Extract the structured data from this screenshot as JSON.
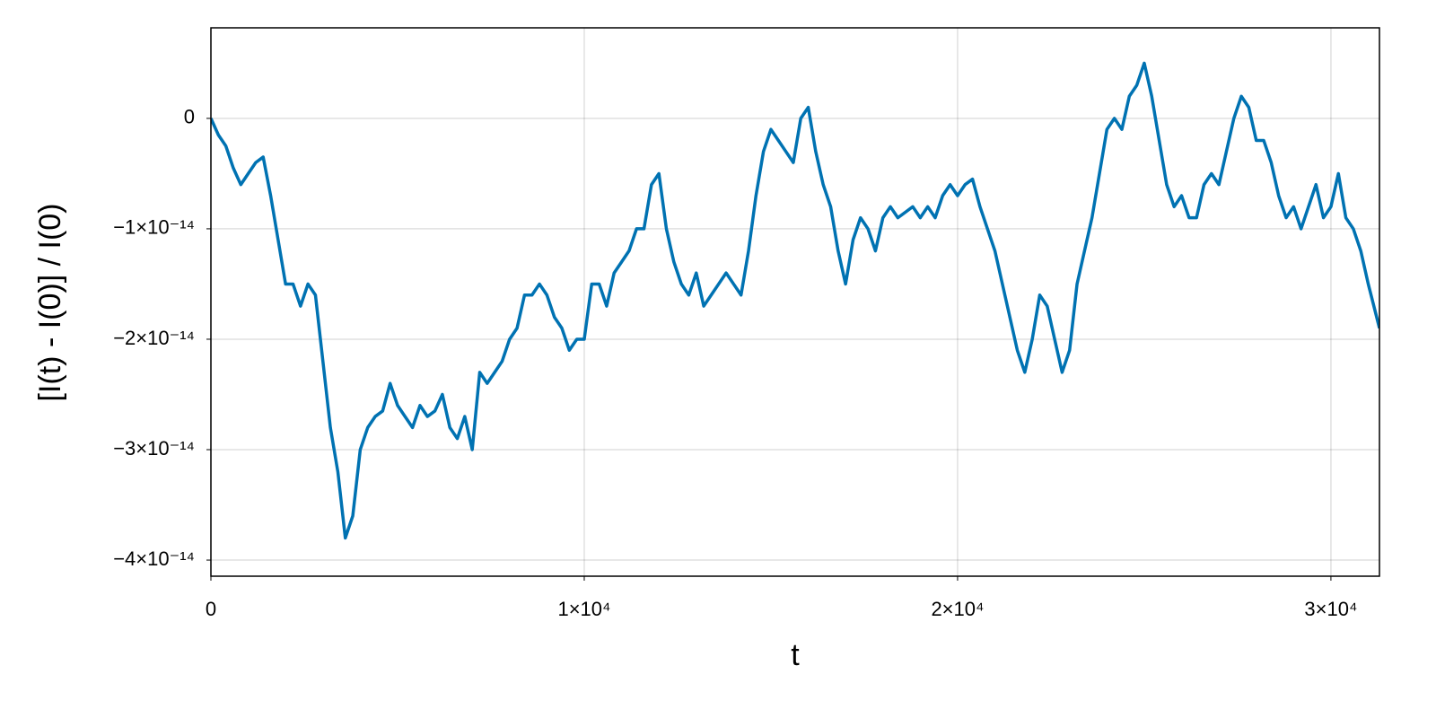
{
  "chart_data": {
    "type": "line",
    "xlabel": "t",
    "ylabel": "[I(t) - I(0)] / I(0)",
    "color": "#0072b2",
    "grid": true,
    "xlim": [
      0,
      31300
    ],
    "ylim": [
      -4.146e-14,
      8.2e-15
    ],
    "xticks": [
      0,
      {
        "value": 10000,
        "label": "1×10⁴"
      },
      {
        "value": 20000,
        "label": "2×10⁴"
      },
      {
        "value": 30000,
        "label": "3×10⁴"
      }
    ],
    "yticks": [
      {
        "value": -4e-14,
        "label": "−4×10⁻¹⁴"
      },
      {
        "value": -3e-14,
        "label": "−3×10⁻¹⁴"
      },
      {
        "value": -2e-14,
        "label": "−2×10⁻¹⁴"
      },
      {
        "value": -1e-14,
        "label": "−1×10⁻¹⁴"
      },
      0
    ],
    "x": [
      0,
      200,
      400,
      600,
      800,
      1000,
      1200,
      1400,
      1600,
      1800,
      2000,
      2200,
      2400,
      2600,
      2800,
      3000,
      3200,
      3400,
      3600,
      3800,
      4000,
      4200,
      4400,
      4600,
      4800,
      5000,
      5200,
      5400,
      5600,
      5800,
      6000,
      6200,
      6400,
      6600,
      6800,
      7000,
      7200,
      7400,
      7600,
      7800,
      8000,
      8200,
      8400,
      8600,
      8800,
      9000,
      9200,
      9400,
      9600,
      9800,
      10000,
      10200,
      10400,
      10600,
      10800,
      11000,
      11200,
      11400,
      11600,
      11800,
      12000,
      12200,
      12400,
      12600,
      12800,
      13000,
      13200,
      13400,
      13600,
      13800,
      14000,
      14200,
      14400,
      14600,
      14800,
      15000,
      15200,
      15400,
      15600,
      15800,
      16000,
      16200,
      16400,
      16600,
      16800,
      17000,
      17200,
      17400,
      17600,
      17800,
      18000,
      18200,
      18400,
      18600,
      18800,
      19000,
      19200,
      19400,
      19600,
      19800,
      20000,
      20200,
      20400,
      20600,
      20800,
      21000,
      21200,
      21400,
      21600,
      21800,
      22000,
      22200,
      22400,
      22600,
      22800,
      23000,
      23200,
      23400,
      23600,
      23800,
      24000,
      24200,
      24400,
      24600,
      24800,
      25000,
      25200,
      25400,
      25600,
      25800,
      26000,
      26200,
      26400,
      26600,
      26800,
      27000,
      27200,
      27400,
      27600,
      27800,
      28000,
      28200,
      28400,
      28600,
      28800,
      29000,
      29200,
      29400,
      29600,
      29800,
      30000,
      30200,
      30400,
      30600,
      30800,
      31000,
      31300
    ],
    "values": [
      0,
      -1.5e-15,
      -2.5e-15,
      -4.5e-15,
      -6e-15,
      -5e-15,
      -4e-15,
      -3.5e-15,
      -7e-15,
      -1.1e-14,
      -1.5e-14,
      -1.5e-14,
      -1.7e-14,
      -1.5e-14,
      -1.6e-14,
      -2.2e-14,
      -2.8e-14,
      -3.2e-14,
      -3.8e-14,
      -3.6e-14,
      -3e-14,
      -2.8e-14,
      -2.7e-14,
      -2.65e-14,
      -2.4e-14,
      -2.6e-14,
      -2.7e-14,
      -2.8e-14,
      -2.6e-14,
      -2.7e-14,
      -2.65e-14,
      -2.5e-14,
      -2.8e-14,
      -2.9e-14,
      -2.7e-14,
      -3e-14,
      -2.3e-14,
      -2.4e-14,
      -2.3e-14,
      -2.2e-14,
      -2e-14,
      -1.9e-14,
      -1.6e-14,
      -1.6e-14,
      -1.5e-14,
      -1.6e-14,
      -1.8e-14,
      -1.9e-14,
      -2.1e-14,
      -2e-14,
      -2e-14,
      -1.5e-14,
      -1.5e-14,
      -1.7e-14,
      -1.4e-14,
      -1.3e-14,
      -1.2e-14,
      -1e-14,
      -1e-14,
      -6e-15,
      -5e-15,
      -1e-14,
      -1.3e-14,
      -1.5e-14,
      -1.6e-14,
      -1.4e-14,
      -1.7e-14,
      -1.6e-14,
      -1.5e-14,
      -1.4e-14,
      -1.5e-14,
      -1.6e-14,
      -1.2e-14,
      -7e-15,
      -3e-15,
      -1e-15,
      -2e-15,
      -3e-15,
      -4e-15,
      0,
      1e-15,
      -3e-15,
      -6e-15,
      -8e-15,
      -1.2e-14,
      -1.5e-14,
      -1.1e-14,
      -9e-15,
      -1e-14,
      -1.2e-14,
      -9e-15,
      -8e-15,
      -9e-15,
      -8.5e-15,
      -8e-15,
      -9e-15,
      -8e-15,
      -9e-15,
      -7e-15,
      -6e-15,
      -7e-15,
      -6e-15,
      -5.5e-15,
      -8e-15,
      -1e-14,
      -1.2e-14,
      -1.5e-14,
      -1.8e-14,
      -2.1e-14,
      -2.3e-14,
      -2e-14,
      -1.6e-14,
      -1.7e-14,
      -2e-14,
      -2.3e-14,
      -2.1e-14,
      -1.5e-14,
      -1.2e-14,
      -9e-15,
      -5e-15,
      -1e-15,
      0,
      -1e-15,
      2e-15,
      3e-15,
      5e-15,
      2e-15,
      -2e-15,
      -6e-15,
      -8e-15,
      -7e-15,
      -9e-15,
      -9e-15,
      -6e-15,
      -5e-15,
      -6e-15,
      -3e-15,
      0,
      2e-15,
      1e-15,
      -2e-15,
      -2e-15,
      -4e-15,
      -7e-15,
      -9e-15,
      -8e-15,
      -1e-14,
      -8e-15,
      -6e-15,
      -9e-15,
      -8e-15,
      -5e-15,
      -9e-15,
      -1e-14,
      -1.2e-14,
      -1.5e-14,
      -1.9e-14
    ]
  }
}
